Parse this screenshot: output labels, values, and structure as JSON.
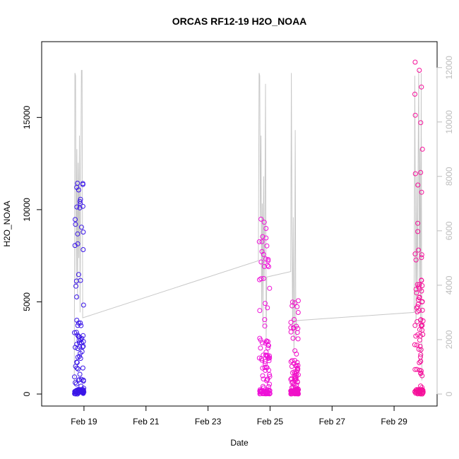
{
  "chart_data": {
    "type": "scatter",
    "title": "ORCAS RF12-19 H2O_NOAA",
    "xlabel": "Date",
    "ylabel": "H2O_NOAA",
    "y2label": "",
    "xlim": [
      "2016-02-18",
      "2016-03-01"
    ],
    "ylim": [
      0,
      18000
    ],
    "y2lim": [
      0,
      12200
    ],
    "grid": false,
    "legend": "none",
    "x_ticks": [
      {
        "date": "2016-02-19",
        "label": "Feb 19"
      },
      {
        "date": "2016-02-21",
        "label": "Feb 21"
      },
      {
        "date": "2016-02-23",
        "label": "Feb 23"
      },
      {
        "date": "2016-02-25",
        "label": "Feb 25"
      },
      {
        "date": "2016-02-27",
        "label": "Feb 27"
      },
      {
        "date": "2016-02-29",
        "label": "Feb 29"
      }
    ],
    "y_ticks": [
      0,
      5000,
      10000,
      15000
    ],
    "y2_ticks": [
      0,
      2000,
      4000,
      6000,
      8000,
      10000,
      12000
    ],
    "colors": {
      "flight1": "#3a16e8",
      "flight2": "#ee10d8",
      "flight3": "#f010c8",
      "flight4": "#f5109a",
      "altitude_line": "#c8c8c8",
      "right_axis": "#bdbdbd"
    },
    "flights": [
      {
        "start": "2016-02-18T16:40",
        "end": "2016-02-19T00:00",
        "ymax": 11500,
        "color": "flight1"
      },
      {
        "start": "2016-02-24T15:40",
        "end": "2016-02-25T00:00",
        "ymax": 9500,
        "color": "flight2"
      },
      {
        "start": "2016-02-25T16:00",
        "end": "2016-02-25T22:00",
        "ymax": 5400,
        "color": "flight3"
      },
      {
        "start": "2016-02-29T16:00",
        "end": "2016-02-29T22:30",
        "ymax": 18000,
        "color": "flight4"
      }
    ],
    "altitude_series": [
      [
        "2016-02-18T16:30",
        300
      ],
      [
        "2016-02-18T17:00",
        11800
      ],
      [
        "2016-02-18T17:30",
        11700
      ],
      [
        "2016-02-18T18:00",
        4000
      ],
      [
        "2016-02-18T18:30",
        9000
      ],
      [
        "2016-02-18T19:00",
        3500
      ],
      [
        "2016-02-18T19:30",
        8500
      ],
      [
        "2016-02-18T20:00",
        5000
      ],
      [
        "2016-02-18T20:30",
        9500
      ],
      [
        "2016-02-18T21:00",
        3000
      ],
      [
        "2016-02-18T21:30",
        7500
      ],
      [
        "2016-02-18T22:00",
        11900
      ],
      [
        "2016-02-18T22:30",
        11900
      ],
      [
        "2016-02-18T23:00",
        2800
      ],
      [
        "2016-02-24T15:00",
        4900
      ],
      [
        "2016-02-24T15:30",
        11800
      ],
      [
        "2016-02-24T16:00",
        11700
      ],
      [
        "2016-02-24T16:30",
        6500
      ],
      [
        "2016-02-24T17:00",
        9500
      ],
      [
        "2016-02-24T17:30",
        3000
      ],
      [
        "2016-02-24T18:00",
        7000
      ],
      [
        "2016-02-24T18:30",
        2500
      ],
      [
        "2016-02-24T19:00",
        8000
      ],
      [
        "2016-02-24T19:30",
        4200
      ],
      [
        "2016-02-24T20:00",
        6500
      ],
      [
        "2016-02-24T20:30",
        11400
      ],
      [
        "2016-02-24T21:00",
        2000
      ],
      [
        "2016-02-24T21:30",
        4300
      ],
      [
        "2016-02-25T16:00",
        4500
      ],
      [
        "2016-02-25T16:30",
        11800
      ],
      [
        "2016-02-25T17:00",
        6000
      ],
      [
        "2016-02-25T17:30",
        2500
      ],
      [
        "2016-02-25T18:00",
        6500
      ],
      [
        "2016-02-25T18:30",
        1500
      ],
      [
        "2016-02-25T19:00",
        3500
      ],
      [
        "2016-02-25T19:30",
        9700
      ],
      [
        "2016-02-25T20:00",
        2000
      ],
      [
        "2016-02-25T20:30",
        2700
      ],
      [
        "2016-02-29T15:30",
        3000
      ],
      [
        "2016-02-29T16:00",
        11700
      ],
      [
        "2016-02-29T16:30",
        6000
      ],
      [
        "2016-02-29T17:00",
        2500
      ],
      [
        "2016-02-29T17:30",
        8000
      ],
      [
        "2016-02-29T18:00",
        3500
      ],
      [
        "2016-02-29T18:30",
        7500
      ],
      [
        "2016-02-29T19:00",
        11900
      ],
      [
        "2016-02-29T19:30",
        4000
      ],
      [
        "2016-02-29T20:00",
        9000
      ],
      [
        "2016-02-29T20:30",
        2500
      ],
      [
        "2016-02-29T21:00",
        11800
      ],
      [
        "2016-02-29T21:30",
        500
      ]
    ],
    "altitude_connectors": [
      [
        "2016-02-18T23:00",
        2800,
        "2016-02-24T15:00",
        4900
      ],
      [
        "2016-02-24T21:30",
        4300,
        "2016-02-25T16:00",
        4500
      ],
      [
        "2016-02-25T20:30",
        2700,
        "2016-02-29T15:30",
        3000
      ]
    ]
  }
}
